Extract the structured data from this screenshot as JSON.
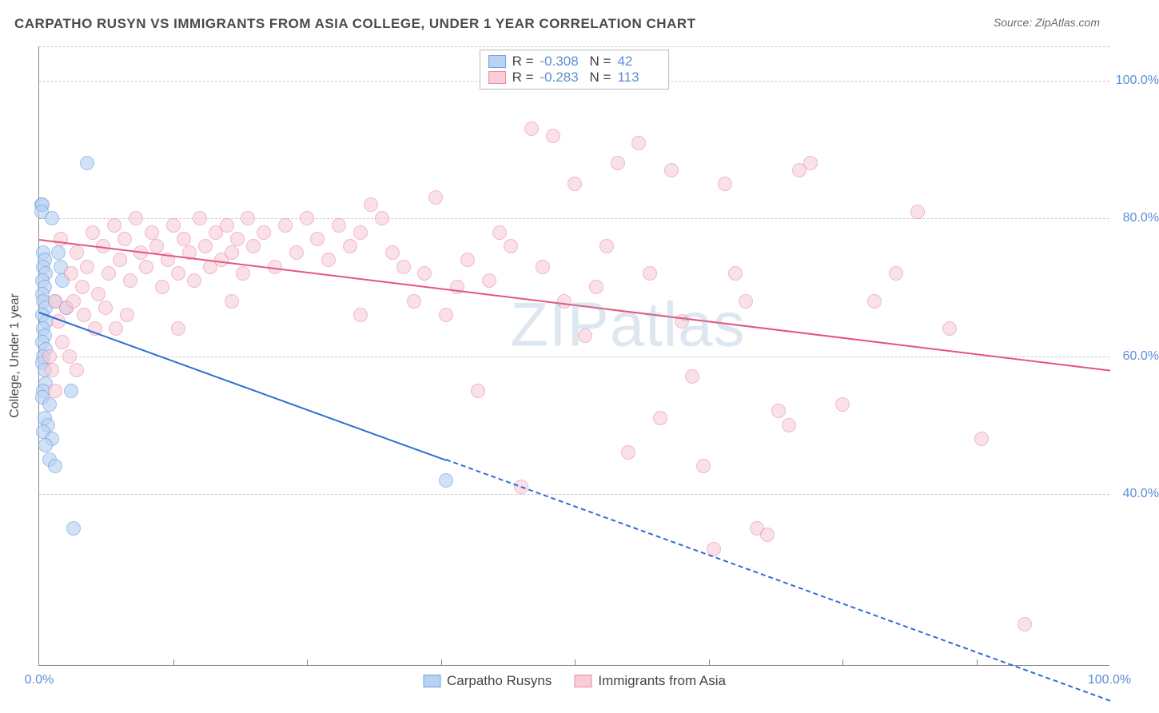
{
  "header": {
    "title": "CARPATHO RUSYN VS IMMIGRANTS FROM ASIA COLLEGE, UNDER 1 YEAR CORRELATION CHART",
    "source": "Source: ZipAtlas.com"
  },
  "watermark": {
    "bold": "ZIP",
    "thin": "atlas"
  },
  "chart": {
    "type": "scatter",
    "y_axis_title": "College, Under 1 year",
    "background_color": "#ffffff",
    "grid_color": "#cccccc",
    "axis_color": "#888888",
    "tick_label_color": "#5b8fd6",
    "xlim": [
      0,
      100
    ],
    "ylim": [
      15,
      105
    ],
    "y_ticks": [
      40,
      60,
      80,
      100
    ],
    "y_tick_labels": [
      "40.0%",
      "60.0%",
      "80.0%",
      "100.0%"
    ],
    "x_tick_minors": [
      12.5,
      25,
      37.5,
      50,
      62.5,
      75,
      87.5
    ],
    "x_start_label": "0.0%",
    "x_end_label": "100.0%",
    "marker_radius": 9,
    "marker_stroke_width": 1.5,
    "series": [
      {
        "name": "Carpatho Rusyns",
        "marker_fill": "#b9d2f2",
        "marker_stroke": "#6ea0e0",
        "fill_opacity": 0.65,
        "regression": {
          "color": "#2e6fd6",
          "width": 2,
          "x1": 0,
          "y1": 66.5,
          "x2": 100,
          "y2": 10,
          "solid_until_x": 38
        },
        "points": [
          [
            0.2,
            82
          ],
          [
            0.3,
            82
          ],
          [
            0.2,
            81
          ],
          [
            0.4,
            75
          ],
          [
            0.5,
            74
          ],
          [
            0.4,
            73
          ],
          [
            0.6,
            72
          ],
          [
            0.3,
            71
          ],
          [
            0.5,
            70
          ],
          [
            0.3,
            69
          ],
          [
            0.4,
            68
          ],
          [
            0.6,
            67
          ],
          [
            0.3,
            66
          ],
          [
            0.7,
            65
          ],
          [
            0.4,
            64
          ],
          [
            0.5,
            63
          ],
          [
            0.3,
            62
          ],
          [
            0.6,
            61
          ],
          [
            0.4,
            60
          ],
          [
            0.3,
            59
          ],
          [
            0.5,
            58
          ],
          [
            0.6,
            56
          ],
          [
            0.4,
            55
          ],
          [
            0.3,
            54
          ],
          [
            1.0,
            53
          ],
          [
            0.5,
            51
          ],
          [
            0.8,
            50
          ],
          [
            0.4,
            49
          ],
          [
            1.2,
            48
          ],
          [
            1.0,
            45
          ],
          [
            1.5,
            44
          ],
          [
            4.5,
            88
          ],
          [
            1.2,
            80
          ],
          [
            1.8,
            75
          ],
          [
            2.0,
            73
          ],
          [
            2.2,
            71
          ],
          [
            1.5,
            68
          ],
          [
            2.5,
            67
          ],
          [
            3.0,
            55
          ],
          [
            3.2,
            35
          ],
          [
            38,
            42
          ],
          [
            0.6,
            47
          ]
        ]
      },
      {
        "name": "Immigrants from Asia",
        "marker_fill": "#f8cdd8",
        "marker_stroke": "#e88aa5",
        "fill_opacity": 0.6,
        "regression": {
          "color": "#e5557e",
          "width": 2,
          "x1": 0,
          "y1": 77,
          "x2": 100,
          "y2": 58,
          "solid_until_x": 100
        },
        "points": [
          [
            2,
            77
          ],
          [
            3,
            72
          ],
          [
            3.5,
            75
          ],
          [
            4,
            70
          ],
          [
            4.5,
            73
          ],
          [
            5,
            78
          ],
          [
            5.5,
            69
          ],
          [
            6,
            76
          ],
          [
            6.5,
            72
          ],
          [
            7,
            79
          ],
          [
            7.5,
            74
          ],
          [
            8,
            77
          ],
          [
            8.5,
            71
          ],
          [
            9,
            80
          ],
          [
            9.5,
            75
          ],
          [
            10,
            73
          ],
          [
            10.5,
            78
          ],
          [
            11,
            76
          ],
          [
            11.5,
            70
          ],
          [
            12,
            74
          ],
          [
            12.5,
            79
          ],
          [
            13,
            72
          ],
          [
            13.5,
            77
          ],
          [
            14,
            75
          ],
          [
            14.5,
            71
          ],
          [
            15,
            80
          ],
          [
            15.5,
            76
          ],
          [
            16,
            73
          ],
          [
            16.5,
            78
          ],
          [
            17,
            74
          ],
          [
            17.5,
            79
          ],
          [
            18,
            75
          ],
          [
            18.5,
            77
          ],
          [
            19,
            72
          ],
          [
            19.5,
            80
          ],
          [
            20,
            76
          ],
          [
            21,
            78
          ],
          [
            22,
            73
          ],
          [
            23,
            79
          ],
          [
            24,
            75
          ],
          [
            25,
            80
          ],
          [
            26,
            77
          ],
          [
            27,
            74
          ],
          [
            28,
            79
          ],
          [
            29,
            76
          ],
          [
            30,
            78
          ],
          [
            31,
            82
          ],
          [
            32,
            80
          ],
          [
            33,
            75
          ],
          [
            34,
            73
          ],
          [
            35,
            68
          ],
          [
            36,
            72
          ],
          [
            37,
            83
          ],
          [
            38,
            66
          ],
          [
            39,
            70
          ],
          [
            40,
            74
          ],
          [
            41,
            55
          ],
          [
            42,
            71
          ],
          [
            43,
            78
          ],
          [
            44,
            76
          ],
          [
            45,
            41
          ],
          [
            46,
            93
          ],
          [
            47,
            73
          ],
          [
            48,
            92
          ],
          [
            49,
            68
          ],
          [
            50,
            85
          ],
          [
            51,
            63
          ],
          [
            52,
            70
          ],
          [
            53,
            76
          ],
          [
            54,
            88
          ],
          [
            55,
            46
          ],
          [
            56,
            91
          ],
          [
            57,
            72
          ],
          [
            58,
            51
          ],
          [
            59,
            87
          ],
          [
            60,
            65
          ],
          [
            61,
            57
          ],
          [
            62,
            44
          ],
          [
            63,
            32
          ],
          [
            64,
            85
          ],
          [
            65,
            72
          ],
          [
            66,
            68
          ],
          [
            67,
            35
          ],
          [
            68,
            34
          ],
          [
            69,
            52
          ],
          [
            70,
            50
          ],
          [
            71,
            87
          ],
          [
            72,
            88
          ],
          [
            75,
            53
          ],
          [
            78,
            68
          ],
          [
            80,
            72
          ],
          [
            82,
            81
          ],
          [
            85,
            64
          ],
          [
            88,
            48
          ],
          [
            92,
            21
          ],
          [
            2.5,
            67
          ],
          [
            3.2,
            68
          ],
          [
            4.2,
            66
          ],
          [
            5.2,
            64
          ],
          [
            6.2,
            67
          ],
          [
            7.2,
            64
          ],
          [
            8.2,
            66
          ],
          [
            1.5,
            68
          ],
          [
            1.8,
            65
          ],
          [
            2.2,
            62
          ],
          [
            2.8,
            60
          ],
          [
            3.5,
            58
          ],
          [
            1.2,
            58
          ],
          [
            1.5,
            55
          ],
          [
            1.0,
            60
          ],
          [
            13,
            64
          ],
          [
            18,
            68
          ],
          [
            30,
            66
          ]
        ]
      }
    ],
    "stats_legend": {
      "rows": [
        {
          "swatch_fill": "#b9d2f2",
          "swatch_stroke": "#6ea0e0",
          "r_label": "R =",
          "r_value": "-0.308",
          "n_label": "N =",
          "n_value": "42"
        },
        {
          "swatch_fill": "#f8cdd8",
          "swatch_stroke": "#e88aa5",
          "r_label": "R =",
          "r_value": "-0.283",
          "n_label": "N =",
          "n_value": "113"
        }
      ]
    },
    "bottom_legend": {
      "items": [
        {
          "swatch_fill": "#b9d2f2",
          "swatch_stroke": "#6ea0e0",
          "label": "Carpatho Rusyns"
        },
        {
          "swatch_fill": "#f8cdd8",
          "swatch_stroke": "#e88aa5",
          "label": "Immigrants from Asia"
        }
      ]
    }
  }
}
